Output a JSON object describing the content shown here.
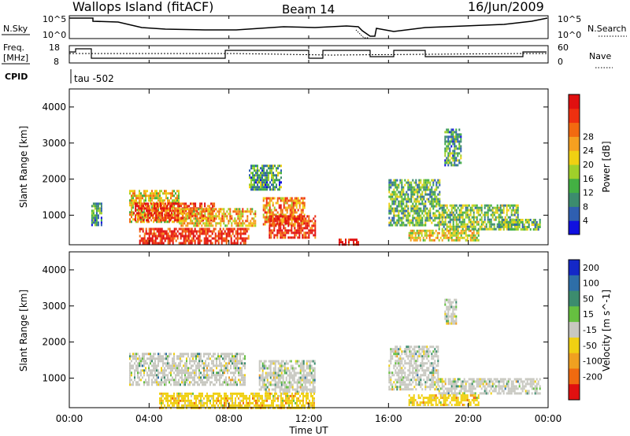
{
  "header": {
    "station": "Wallops Island (fitACF)",
    "beam": "Beam 14",
    "date": "16/Jun/2009"
  },
  "top_panels": {
    "nsky_label": "N.Sky",
    "nsky_ticks": [
      "10^5",
      "10^0"
    ],
    "nsearch_label": "N.Search",
    "nsearch_ticks": [
      "10^5",
      "10^0"
    ],
    "freq_label": "Freq.",
    "freq_unit": "[MHz]",
    "freq_ticks": [
      "18",
      "8"
    ],
    "nave_label": "Nave",
    "nave_ticks": [
      "60",
      "0"
    ],
    "cpid_label": "CPID",
    "cpid_text": "tau -502"
  },
  "chart_data": [
    {
      "type": "heatmap",
      "name": "power",
      "ylabel": "Slant Range [km]",
      "ylim": [
        180,
        4500
      ],
      "yticks": [
        1000,
        2000,
        3000,
        4000
      ],
      "xlim": [
        0,
        24
      ],
      "colorbar_label": "Power [dB]",
      "colorbar_ticks": [
        "4",
        "8",
        "12",
        "16",
        "20",
        "24",
        "28"
      ],
      "colors": [
        "#1010e0",
        "#2f5fb0",
        "#3c8c6e",
        "#43b043",
        "#9fd02a",
        "#f0d012",
        "#f5a020",
        "#f26a10",
        "#ee3010",
        "#e01010"
      ],
      "regions": [
        {
          "t0": 1.1,
          "t1": 1.6,
          "r0": 750,
          "r1": 1350,
          "level": 0.3
        },
        {
          "t0": 3.0,
          "t1": 5.5,
          "r0": 800,
          "r1": 1700,
          "level": 0.55
        },
        {
          "t0": 3.2,
          "t1": 7.3,
          "r0": 850,
          "r1": 1350,
          "level": 0.85
        },
        {
          "t0": 5.5,
          "t1": 9.3,
          "r0": 700,
          "r1": 1200,
          "level": 0.6
        },
        {
          "t0": 3.5,
          "t1": 9.0,
          "r0": 250,
          "r1": 650,
          "level": 0.9
        },
        {
          "t0": 9.7,
          "t1": 11.8,
          "r0": 750,
          "r1": 1500,
          "level": 0.7
        },
        {
          "t0": 10.0,
          "t1": 12.3,
          "r0": 400,
          "r1": 1000,
          "level": 0.9
        },
        {
          "t0": 9.0,
          "t1": 10.6,
          "r0": 1700,
          "r1": 2400,
          "level": 0.3
        },
        {
          "t0": 13.5,
          "t1": 14.5,
          "r0": 200,
          "r1": 350,
          "level": 0.95
        },
        {
          "t0": 16.0,
          "t1": 18.6,
          "r0": 700,
          "r1": 2000,
          "level": 0.35
        },
        {
          "t0": 17.0,
          "t1": 20.5,
          "r0": 300,
          "r1": 600,
          "level": 0.55
        },
        {
          "t0": 18.5,
          "t1": 22.5,
          "r0": 600,
          "r1": 1300,
          "level": 0.4
        },
        {
          "t0": 18.8,
          "t1": 19.6,
          "r0": 2400,
          "r1": 3400,
          "level": 0.3
        },
        {
          "t0": 21.5,
          "t1": 23.6,
          "r0": 600,
          "r1": 900,
          "level": 0.35
        }
      ]
    },
    {
      "type": "heatmap",
      "name": "velocity",
      "ylabel": "Slant Range [km]",
      "xlabel": "Time UT",
      "ylim": [
        180,
        4500
      ],
      "yticks": [
        1000,
        2000,
        3000,
        4000
      ],
      "xlim": [
        0,
        24
      ],
      "xticks": [
        "00:00",
        "04:00",
        "08:00",
        "12:00",
        "16:00",
        "20:00",
        "00:00"
      ],
      "colorbar_label": "Velocity [m s^-1]",
      "colorbar_ticks": [
        "200",
        "100",
        "50",
        "15",
        "-15",
        "-50",
        "-100",
        "-200"
      ],
      "colors": [
        "#1428c8",
        "#2e6ea8",
        "#3c8c6e",
        "#66c040",
        "#c8c8c0",
        "#f0d012",
        "#f0a020",
        "#f06a10",
        "#e01010"
      ],
      "regions": [
        {
          "t0": 3.0,
          "t1": 8.8,
          "r0": 800,
          "r1": 1700,
          "level": 0.45
        },
        {
          "t0": 9.5,
          "t1": 12.3,
          "r0": 600,
          "r1": 1500,
          "level": 0.45
        },
        {
          "t0": 16.0,
          "t1": 18.5,
          "r0": 700,
          "r1": 1900,
          "level": 0.45
        },
        {
          "t0": 18.5,
          "t1": 23.6,
          "r0": 600,
          "r1": 1000,
          "level": 0.45
        },
        {
          "t0": 4.5,
          "t1": 12.3,
          "r0": 200,
          "r1": 600,
          "level": 0.65
        },
        {
          "t0": 17.0,
          "t1": 20.5,
          "r0": 250,
          "r1": 550,
          "level": 0.6
        },
        {
          "t0": 18.8,
          "t1": 19.4,
          "r0": 2500,
          "r1": 3200,
          "level": 0.45
        }
      ]
    }
  ]
}
